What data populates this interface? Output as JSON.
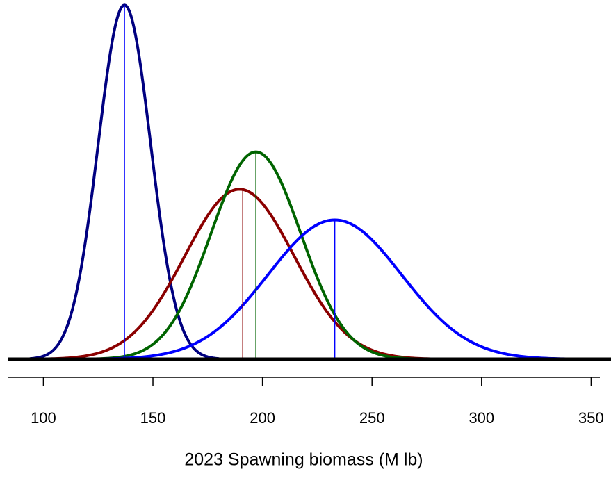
{
  "chart_data": {
    "type": "density",
    "xlabel": "2023 Spawning biomass (M lb)",
    "xlim": [
      84,
      354
    ],
    "xticks": [
      100,
      150,
      200,
      250,
      300,
      350
    ],
    "ylim": [
      0,
      0.0332
    ],
    "series": [
      {
        "color": "#000080",
        "line_color": "#0000ff",
        "mean": 137,
        "sd": 12,
        "median": 137
      },
      {
        "color": "#8b0000",
        "line_color": "#8b0000",
        "mean": 189.5,
        "sd": 25,
        "median": 191
      },
      {
        "color": "#006400",
        "line_color": "#006400",
        "mean": 197,
        "sd": 20.5,
        "median": 197
      },
      {
        "color": "#0000ff",
        "line_color": "#0000ff",
        "mean": 233,
        "sd": 30.5,
        "median": 233
      }
    ]
  }
}
